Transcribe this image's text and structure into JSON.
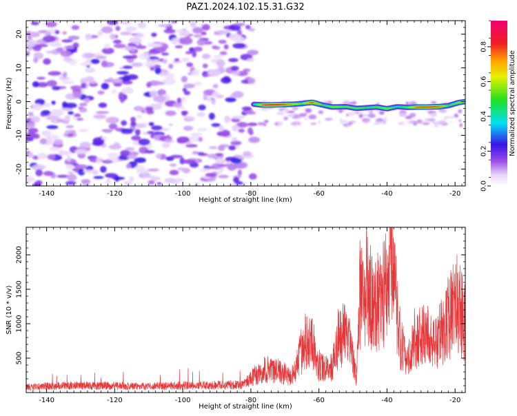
{
  "figure": {
    "title": "PAZ1.2024.102.15.31.G32"
  },
  "chart_data": [
    {
      "type": "heatmap",
      "xlabel": "Height of straight line (km)",
      "ylabel": "Frequency (Hz)",
      "xlim": [
        -146,
        -17
      ],
      "ylim": [
        -25,
        24
      ],
      "xticks": [
        -140,
        -120,
        -100,
        -80,
        -60,
        -40,
        -20
      ],
      "yticks": [
        -20,
        -10,
        0,
        10,
        20
      ],
      "colorbar": {
        "label": "Normalized spectral amplitude",
        "range": [
          0,
          0.95
        ],
        "ticks": [
          0.0,
          0.2,
          0.4,
          0.6,
          0.8
        ],
        "colormap": "white-purple-blue-cyan-green-yellow-orange-red-magenta"
      },
      "noise_region_x": [
        -146,
        -79
      ],
      "signal_trace": {
        "x": [
          -79,
          -76,
          -72,
          -68,
          -65,
          -62,
          -59,
          -56,
          -52,
          -49,
          -46,
          -43,
          -40,
          -37,
          -34,
          -31,
          -28,
          -25,
          -22,
          -19,
          -17
        ],
        "y": [
          -0.8,
          -1.0,
          -0.9,
          -0.8,
          -0.6,
          -0.2,
          -1.0,
          -1.6,
          -1.5,
          -2.0,
          -1.8,
          -1.6,
          -2.1,
          -1.5,
          -1.7,
          -1.6,
          -1.6,
          -1.5,
          -1.2,
          -0.3,
          0.0
        ],
        "amplitude": [
          0.45,
          0.9,
          0.95,
          0.7,
          0.55,
          0.85,
          0.5,
          0.6,
          0.55,
          0.55,
          0.5,
          0.55,
          0.6,
          0.45,
          0.55,
          0.85,
          0.9,
          0.85,
          0.5,
          0.6,
          0.6
        ]
      }
    },
    {
      "type": "line",
      "xlabel": "Height of straight line (km)",
      "ylabel": "SNR (10 * v/v)",
      "xlim": [
        -146,
        -17
      ],
      "ylim": [
        0,
        2400
      ],
      "xticks": [
        -140,
        -120,
        -100,
        -80,
        -60,
        -40,
        -20
      ],
      "yticks": [
        500,
        1000,
        1500,
        2000
      ],
      "series": [
        {
          "color": "#e8373a",
          "x": [
            -146,
            -140,
            -130,
            -120,
            -110,
            -100,
            -90,
            -82,
            -79,
            -76,
            -73,
            -70,
            -68,
            -66,
            -64,
            -62,
            -60,
            -58,
            -56,
            -54,
            -52,
            -50,
            -49,
            -48,
            -46,
            -44,
            -42,
            -40,
            -39,
            -38,
            -36,
            -34,
            -32,
            -30,
            -28,
            -26,
            -24,
            -22,
            -20,
            -18,
            -17
          ],
          "y": [
            90,
            110,
            120,
            115,
            110,
            120,
            125,
            140,
            300,
            400,
            380,
            330,
            250,
            600,
            900,
            900,
            450,
            420,
            450,
            1000,
            1050,
            600,
            250,
            1700,
            1850,
            1500,
            1600,
            2000,
            2400,
            1900,
            900,
            500,
            900,
            1000,
            950,
            800,
            1100,
            1300,
            1500,
            1400,
            1200
          ]
        }
      ]
    }
  ]
}
